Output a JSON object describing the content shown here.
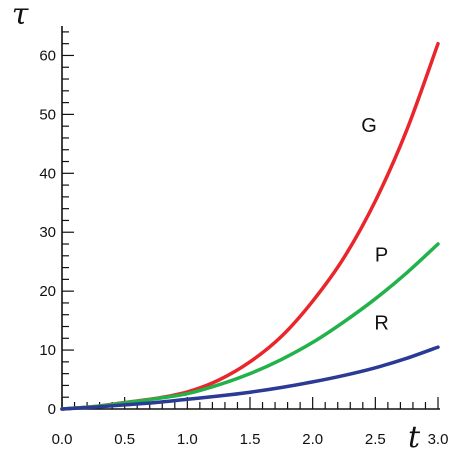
{
  "chart_data": {
    "type": "line",
    "xlabel": "t",
    "ylabel": "τ",
    "xlim": [
      0,
      3.0
    ],
    "ylim": [
      0,
      65
    ],
    "x_ticks": [
      "0.0",
      "0.5",
      "1.0",
      "1.5",
      "2.0",
      "2.5",
      "3.0"
    ],
    "y_ticks": [
      "0",
      "10",
      "20",
      "30",
      "40",
      "50",
      "60"
    ],
    "x": [
      0,
      0.25,
      0.5,
      0.75,
      1.0,
      1.25,
      1.5,
      1.75,
      2.0,
      2.25,
      2.5,
      2.75,
      3.0
    ],
    "series": [
      {
        "name": "G",
        "color": "#e8262c",
        "label_at": [
          2.45,
          47
        ],
        "values": [
          0,
          0.4,
          1.1,
          1.8,
          2.9,
          4.9,
          8.0,
          12.3,
          18.3,
          25.7,
          35.3,
          47.3,
          62.0
        ]
      },
      {
        "name": "P",
        "color": "#22b24a",
        "label_at": [
          2.55,
          25
        ],
        "values": [
          0,
          0.4,
          1.05,
          1.75,
          2.6,
          4.1,
          6.0,
          8.4,
          11.3,
          14.8,
          18.7,
          23.1,
          28.0
        ]
      },
      {
        "name": "R",
        "color": "#2b3a94",
        "label_at": [
          2.55,
          13.5
        ],
        "values": [
          0,
          0.3,
          0.7,
          1.1,
          1.65,
          2.2,
          2.85,
          3.65,
          4.6,
          5.7,
          7.0,
          8.6,
          10.5
        ]
      }
    ],
    "grid": false,
    "legend": "none"
  }
}
